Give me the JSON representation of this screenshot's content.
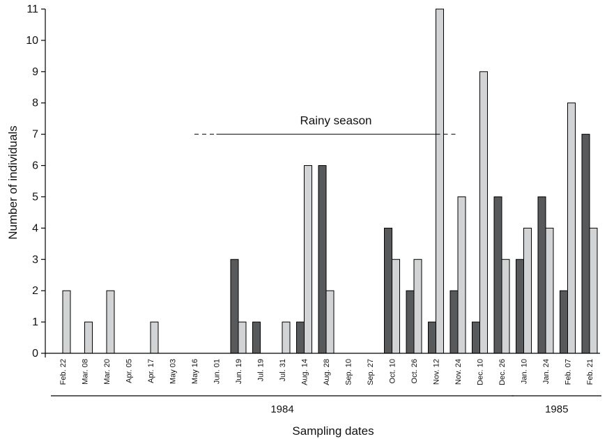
{
  "chart_data": {
    "type": "bar",
    "title": "",
    "xlabel": "Sampling dates",
    "ylabel": "Number of individuals",
    "ylim": [
      0,
      11
    ],
    "yticks": [
      0,
      1,
      2,
      3,
      4,
      5,
      6,
      7,
      8,
      9,
      10,
      11
    ],
    "categories": [
      "Feb. 22",
      "Mar. 08",
      "Mar. 20",
      "Apr. 05",
      "Apr. 17",
      "May 03",
      "May 16",
      "Jun. 01",
      "Jun. 19",
      "Jul. 19",
      "Jul. 31",
      "Aug. 14",
      "Aug. 28",
      "Sep. 10",
      "Sep. 27",
      "Oct. 10",
      "Oct. 26",
      "Nov. 12",
      "Nov. 24",
      "Dec. 10",
      "Dec. 26",
      "Jan. 10",
      "Jan. 24",
      "Feb. 07",
      "Feb. 21"
    ],
    "series": [
      {
        "color": "#58595b",
        "values": [
          0,
          0,
          0,
          0,
          0,
          0,
          0,
          0,
          3,
          1,
          0,
          1,
          6,
          0,
          0,
          4,
          2,
          1,
          2,
          1,
          5,
          3,
          5,
          2,
          7
        ]
      },
      {
        "color": "#d1d3d4",
        "values": [
          2,
          1,
          2,
          0,
          1,
          0,
          0,
          0,
          1,
          0,
          1,
          6,
          2,
          0,
          0,
          3,
          3,
          11,
          5,
          9,
          3,
          4,
          4,
          8,
          4
        ]
      }
    ],
    "year_groups": [
      {
        "label": "1984",
        "from": "Feb. 22",
        "to": "Dec. 26"
      },
      {
        "label": "1985",
        "from": "Jan. 10",
        "to": "Feb. 21"
      }
    ],
    "annotations": [
      {
        "text": "Rainy season",
        "y": 7,
        "solid_from": "Jun. 01",
        "solid_to": "Nov. 12",
        "dashed_from": "May 16",
        "dashed_to": "Nov. 24"
      }
    ],
    "grid": false,
    "legend": "none"
  }
}
